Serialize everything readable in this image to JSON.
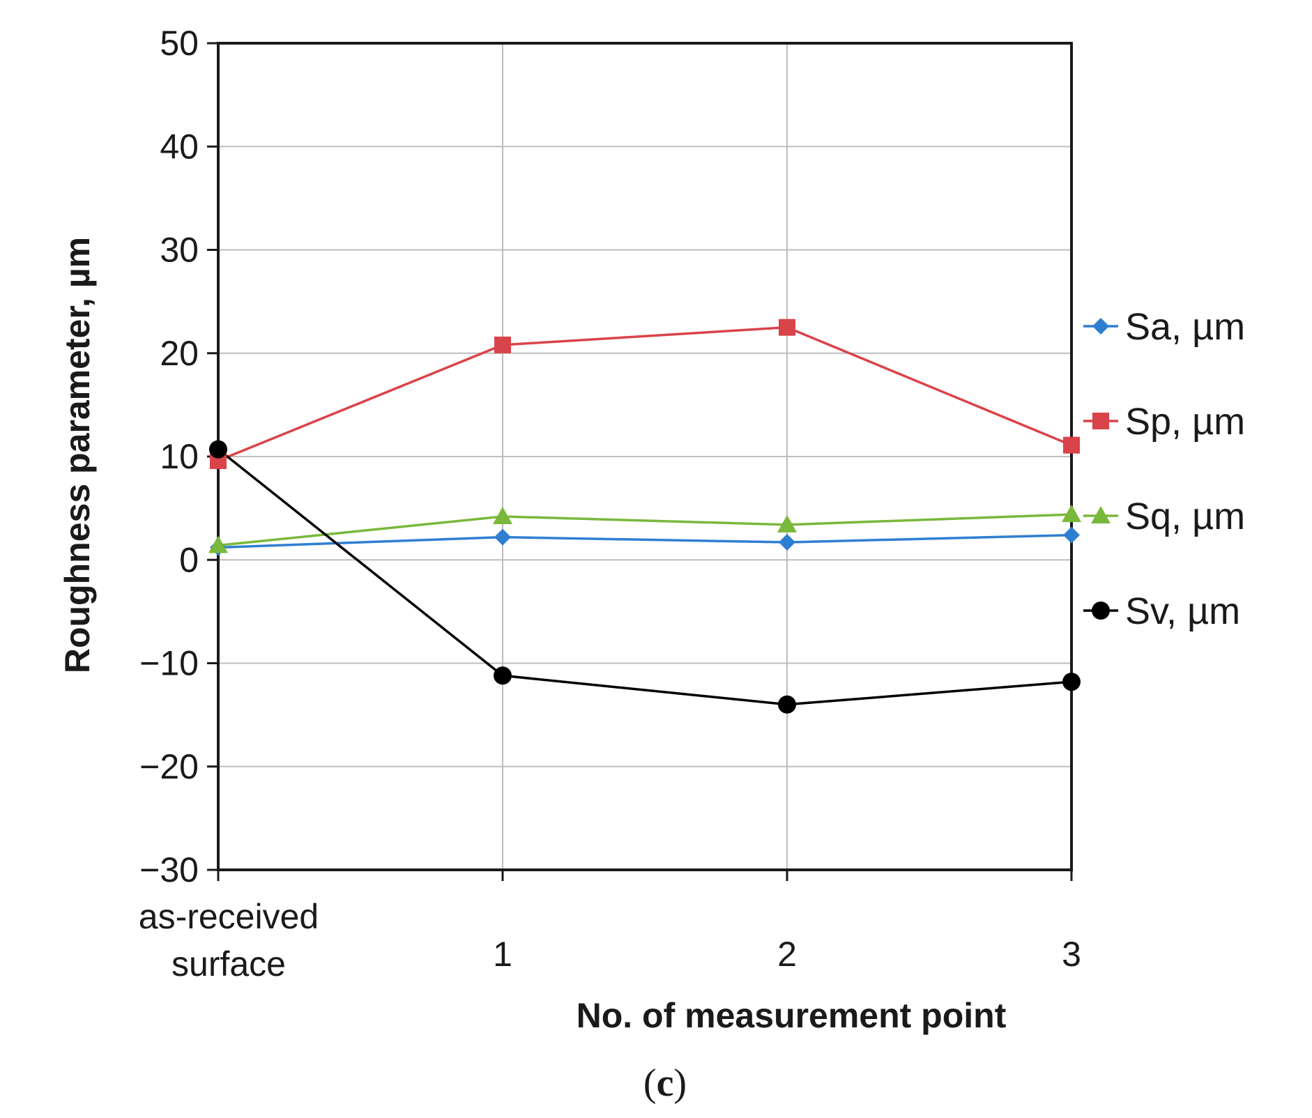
{
  "chart_data": {
    "type": "line",
    "title": "",
    "xlabel": "No. of measurement point",
    "ylabel": "Roughness parameter, µm",
    "caption": {
      "open": "(",
      "letter": "c",
      "close": ")"
    },
    "categories": [
      {
        "line1": "as-received",
        "line2": "surface"
      },
      {
        "line1": "1",
        "line2": ""
      },
      {
        "line1": "2",
        "line2": ""
      },
      {
        "line1": "3",
        "line2": ""
      }
    ],
    "ylim": [
      -30,
      50
    ],
    "yticks": [
      {
        "value": -30,
        "label": "−30"
      },
      {
        "value": -20,
        "label": "−20"
      },
      {
        "value": -10,
        "label": "−10"
      },
      {
        "value": 0,
        "label": "0"
      },
      {
        "value": 10,
        "label": "10"
      },
      {
        "value": 20,
        "label": "20"
      },
      {
        "value": 30,
        "label": "30"
      },
      {
        "value": 40,
        "label": "40"
      },
      {
        "value": 50,
        "label": "50"
      }
    ],
    "grid": true,
    "legend_position": "right",
    "series": [
      {
        "name": "Sa, µm",
        "color": "#2e7fd1",
        "marker": "diamond",
        "values": [
          1.2,
          2.2,
          1.7,
          2.4
        ]
      },
      {
        "name": "Sp, µm",
        "color": "#d9434a",
        "marker": "square",
        "values": [
          9.6,
          20.8,
          22.5,
          11.1
        ]
      },
      {
        "name": "Sq, µm",
        "color": "#7ab83c",
        "marker": "triangle",
        "values": [
          1.4,
          4.2,
          3.4,
          4.4
        ]
      },
      {
        "name": "Sv, µm",
        "color": "#000000",
        "marker": "circle",
        "values": [
          10.7,
          -11.2,
          -14.0,
          -11.8
        ]
      }
    ]
  }
}
